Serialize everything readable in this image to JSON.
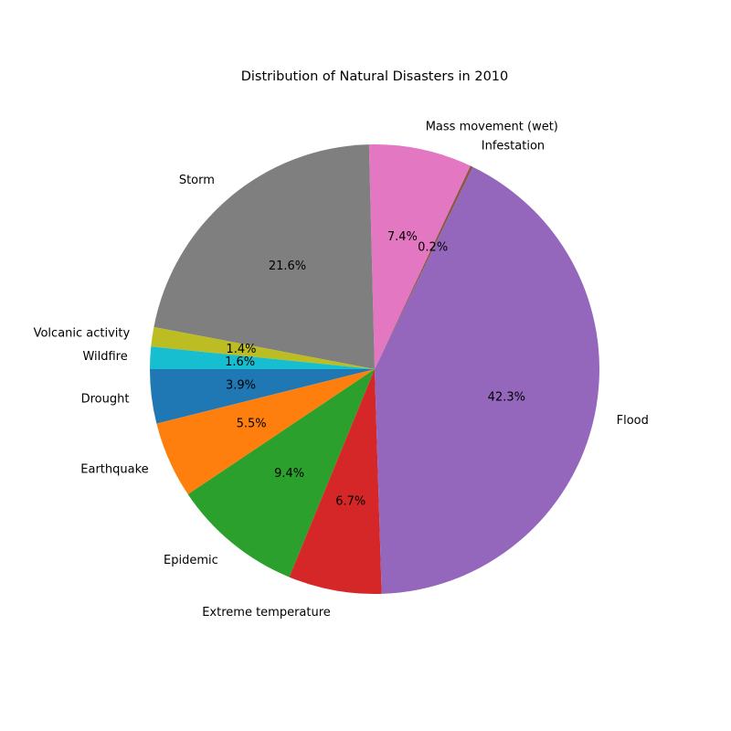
{
  "chart_data": {
    "type": "pie",
    "title": "Distribution of Natural Disasters in 2010",
    "start_angle_deg": 180,
    "direction": "counterclockwise",
    "slices": [
      {
        "label": "Drought",
        "value": 3.9,
        "pct_label": "3.9%",
        "color": "#1f77b4"
      },
      {
        "label": "Earthquake",
        "value": 5.5,
        "pct_label": "5.5%",
        "color": "#ff7f0e"
      },
      {
        "label": "Epidemic",
        "value": 9.4,
        "pct_label": "9.4%",
        "color": "#2ca02c"
      },
      {
        "label": "Extreme temperature",
        "value": 6.7,
        "pct_label": "6.7%",
        "color": "#d62728"
      },
      {
        "label": "Flood",
        "value": 42.3,
        "pct_label": "42.3%",
        "color": "#9467bd"
      },
      {
        "label": "Infestation",
        "value": 0.2,
        "pct_label": "0.2%",
        "color": "#8c564b"
      },
      {
        "label": "Mass movement (wet)",
        "value": 7.4,
        "pct_label": "7.4%",
        "color": "#e377c2"
      },
      {
        "label": "Storm",
        "value": 21.6,
        "pct_label": "21.6%",
        "color": "#7f7f7f"
      },
      {
        "label": "Volcanic activity",
        "value": 1.4,
        "pct_label": "1.4%",
        "color": "#bcbd22"
      },
      {
        "label": "Wildfire",
        "value": 1.6,
        "pct_label": "1.6%",
        "color": "#17becf"
      }
    ]
  }
}
